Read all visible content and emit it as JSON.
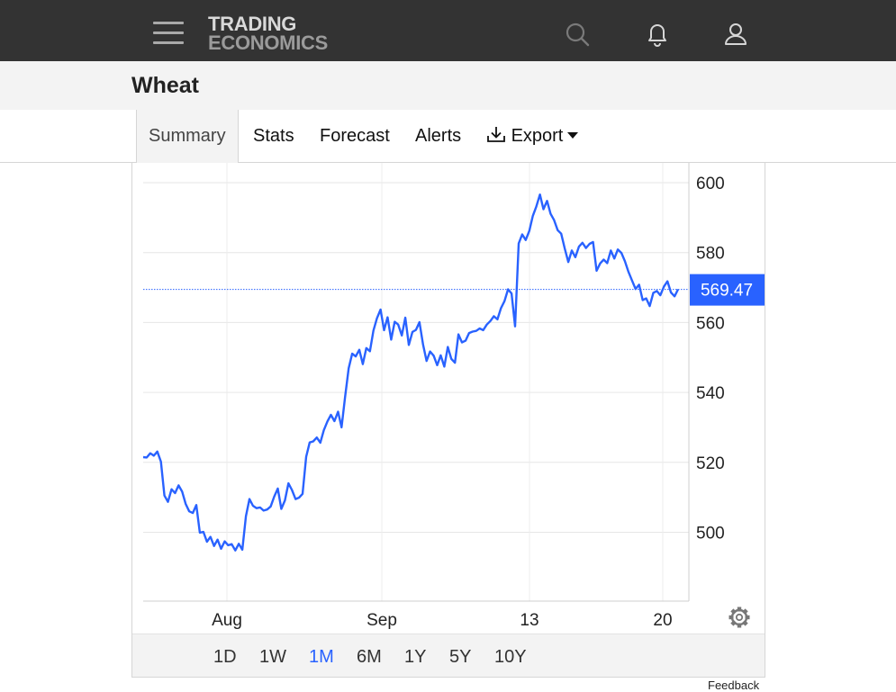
{
  "header": {
    "logo_line1": "TRADING",
    "logo_line2": "ECONOMICS",
    "icons": [
      "menu-icon",
      "search-icon",
      "bell-icon",
      "user-icon"
    ]
  },
  "page": {
    "title": "Wheat"
  },
  "tabs": [
    {
      "label": "Summary",
      "active": true
    },
    {
      "label": "Stats"
    },
    {
      "label": "Forecast"
    },
    {
      "label": "Alerts"
    },
    {
      "label": "Export",
      "icon": "download-icon"
    }
  ],
  "ranges": [
    {
      "label": "1D"
    },
    {
      "label": "1W"
    },
    {
      "label": "1M",
      "active": true
    },
    {
      "label": "6M"
    },
    {
      "label": "1Y"
    },
    {
      "label": "5Y"
    },
    {
      "label": "10Y"
    }
  ],
  "feedback_label": "Feedback",
  "colors": {
    "line": "#2962ff",
    "price_tag": "#2962ff",
    "topbar": "#333333",
    "active_range": "#2962ff"
  },
  "chart_data": {
    "type": "line",
    "title": "",
    "xlabel": "",
    "ylabel": "",
    "x_tick_labels": [
      "Aug",
      "Sep",
      "13",
      "20"
    ],
    "y_ticks": [
      500,
      520,
      540,
      560,
      580,
      600
    ],
    "ylim": [
      480,
      605
    ],
    "grid": true,
    "last_value_label": "569.47",
    "last_value": 569.47,
    "series": [
      {
        "values": [
          521.5,
          521.4,
          522.6,
          521.9,
          523.1,
          520.2,
          510.5,
          508.7,
          512.3,
          511.2,
          513.4,
          511.6,
          508.1,
          506.0,
          505.5,
          507.8,
          499.9,
          500.1,
          497.3,
          498.7,
          496.1,
          497.9,
          495.3,
          497.4,
          496.3,
          496.6,
          494.8,
          496.7,
          495.0,
          504.6,
          509.5,
          507.6,
          506.9,
          507.1,
          506.2,
          506.5,
          507.4,
          510.2,
          512.5,
          506.7,
          509.1,
          514.0,
          512.1,
          509.5,
          509.9,
          511.0,
          521.6,
          525.7,
          526.0,
          527.1,
          525.6,
          529.2,
          531.7,
          533.6,
          531.8,
          534.5,
          530.0,
          538.7,
          546.9,
          551.1,
          550.3,
          552.2,
          548.1,
          552.7,
          551.8,
          557.7,
          561.2,
          563.7,
          557.8,
          561.5,
          555.1,
          560.2,
          559.4,
          556.3,
          561.4,
          553.6,
          557.3,
          557.9,
          560.1,
          553.7,
          549.0,
          551.7,
          550.5,
          547.8,
          550.6,
          547.4,
          553.0,
          549.6,
          548.5,
          556.6,
          554.3,
          554.8,
          557.0,
          557.4,
          557.6,
          558.3,
          557.8,
          559.4,
          560.4,
          561.8,
          560.9,
          564.1,
          566.1,
          569.5,
          568.3,
          558.9,
          582.6,
          585.2,
          583.6,
          586.2,
          590.5,
          593.2,
          596.6,
          592.4,
          594.8,
          591.1,
          589.3,
          586.4,
          585.4,
          581.2,
          577.3,
          580.6,
          578.7,
          581.7,
          582.8,
          581.3,
          582.5,
          583.0,
          574.8,
          576.9,
          578.0,
          577.0,
          580.6,
          578.3,
          580.9,
          579.9,
          577.5,
          574.5,
          572.0,
          569.6,
          570.8,
          566.4,
          566.9,
          564.7,
          568.5,
          569.0,
          567.8,
          570.3,
          571.8,
          568.6,
          567.5,
          569.5
        ]
      }
    ]
  }
}
